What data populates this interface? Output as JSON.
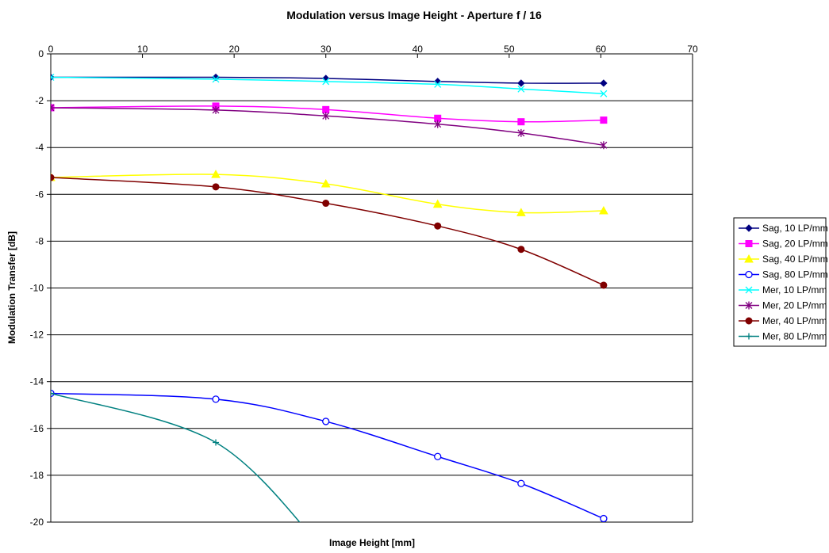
{
  "chart_data": {
    "type": "line",
    "title": "Modulation versus Image Height - Aperture f / 16",
    "xlabel": "Image Height [mm]",
    "ylabel": "Modulation Transfer [dB]",
    "xlim": [
      0,
      70
    ],
    "ylim": [
      -20,
      0
    ],
    "xticks": [
      0,
      10,
      20,
      30,
      40,
      50,
      60,
      70
    ],
    "yticks": [
      0,
      -2,
      -4,
      -6,
      -8,
      -10,
      -12,
      -14,
      -16,
      -18,
      -20
    ],
    "grid": "horizontal",
    "legend_position": "right",
    "series": [
      {
        "name": "Sag, 10 LP/mm",
        "color": "#000080",
        "marker": "diamond",
        "x": [
          0,
          18,
          30,
          42.2,
          51.3,
          60.3
        ],
        "y": [
          -1.0,
          -1.0,
          -1.05,
          -1.18,
          -1.25,
          -1.25
        ]
      },
      {
        "name": "Sag, 20 LP/mm",
        "color": "#ff00ff",
        "marker": "square",
        "x": [
          0,
          18,
          30,
          42.2,
          51.3,
          60.3
        ],
        "y": [
          -2.3,
          -2.23,
          -2.38,
          -2.75,
          -2.9,
          -2.83
        ]
      },
      {
        "name": "Sag, 40 LP/mm",
        "color": "#ffff00",
        "marker": "triangle",
        "x": [
          0,
          18,
          30,
          42.2,
          51.3,
          60.3
        ],
        "y": [
          -5.28,
          -5.15,
          -5.55,
          -6.42,
          -6.78,
          -6.7
        ]
      },
      {
        "name": "Sag, 80 LP/mm",
        "color": "#0000ff",
        "marker": "circle-open",
        "x": [
          0,
          18,
          30,
          42.2,
          51.3,
          60.3
        ],
        "y": [
          -14.5,
          -14.75,
          -15.7,
          -17.2,
          -18.35,
          -19.85
        ]
      },
      {
        "name": "Mer, 10 LP/mm",
        "color": "#00ffff",
        "marker": "x",
        "x": [
          0,
          18,
          30,
          42.2,
          51.3,
          60.3
        ],
        "y": [
          -1.0,
          -1.08,
          -1.18,
          -1.3,
          -1.5,
          -1.7
        ]
      },
      {
        "name": "Mer, 20 LP/mm",
        "color": "#800080",
        "marker": "star",
        "x": [
          0,
          18,
          30,
          42.2,
          51.3,
          60.3
        ],
        "y": [
          -2.3,
          -2.4,
          -2.65,
          -3.0,
          -3.38,
          -3.9
        ]
      },
      {
        "name": "Mer, 40 LP/mm",
        "color": "#800000",
        "marker": "circle",
        "x": [
          0,
          18,
          30,
          42.2,
          51.3,
          60.3
        ],
        "y": [
          -5.28,
          -5.68,
          -6.38,
          -7.35,
          -8.35,
          -9.88
        ]
      },
      {
        "name": "Mer, 80 LP/mm",
        "color": "#008080",
        "marker": "plus",
        "x": [
          0,
          18,
          30
        ],
        "y": [
          -14.5,
          -16.6,
          -21.3
        ]
      }
    ]
  }
}
